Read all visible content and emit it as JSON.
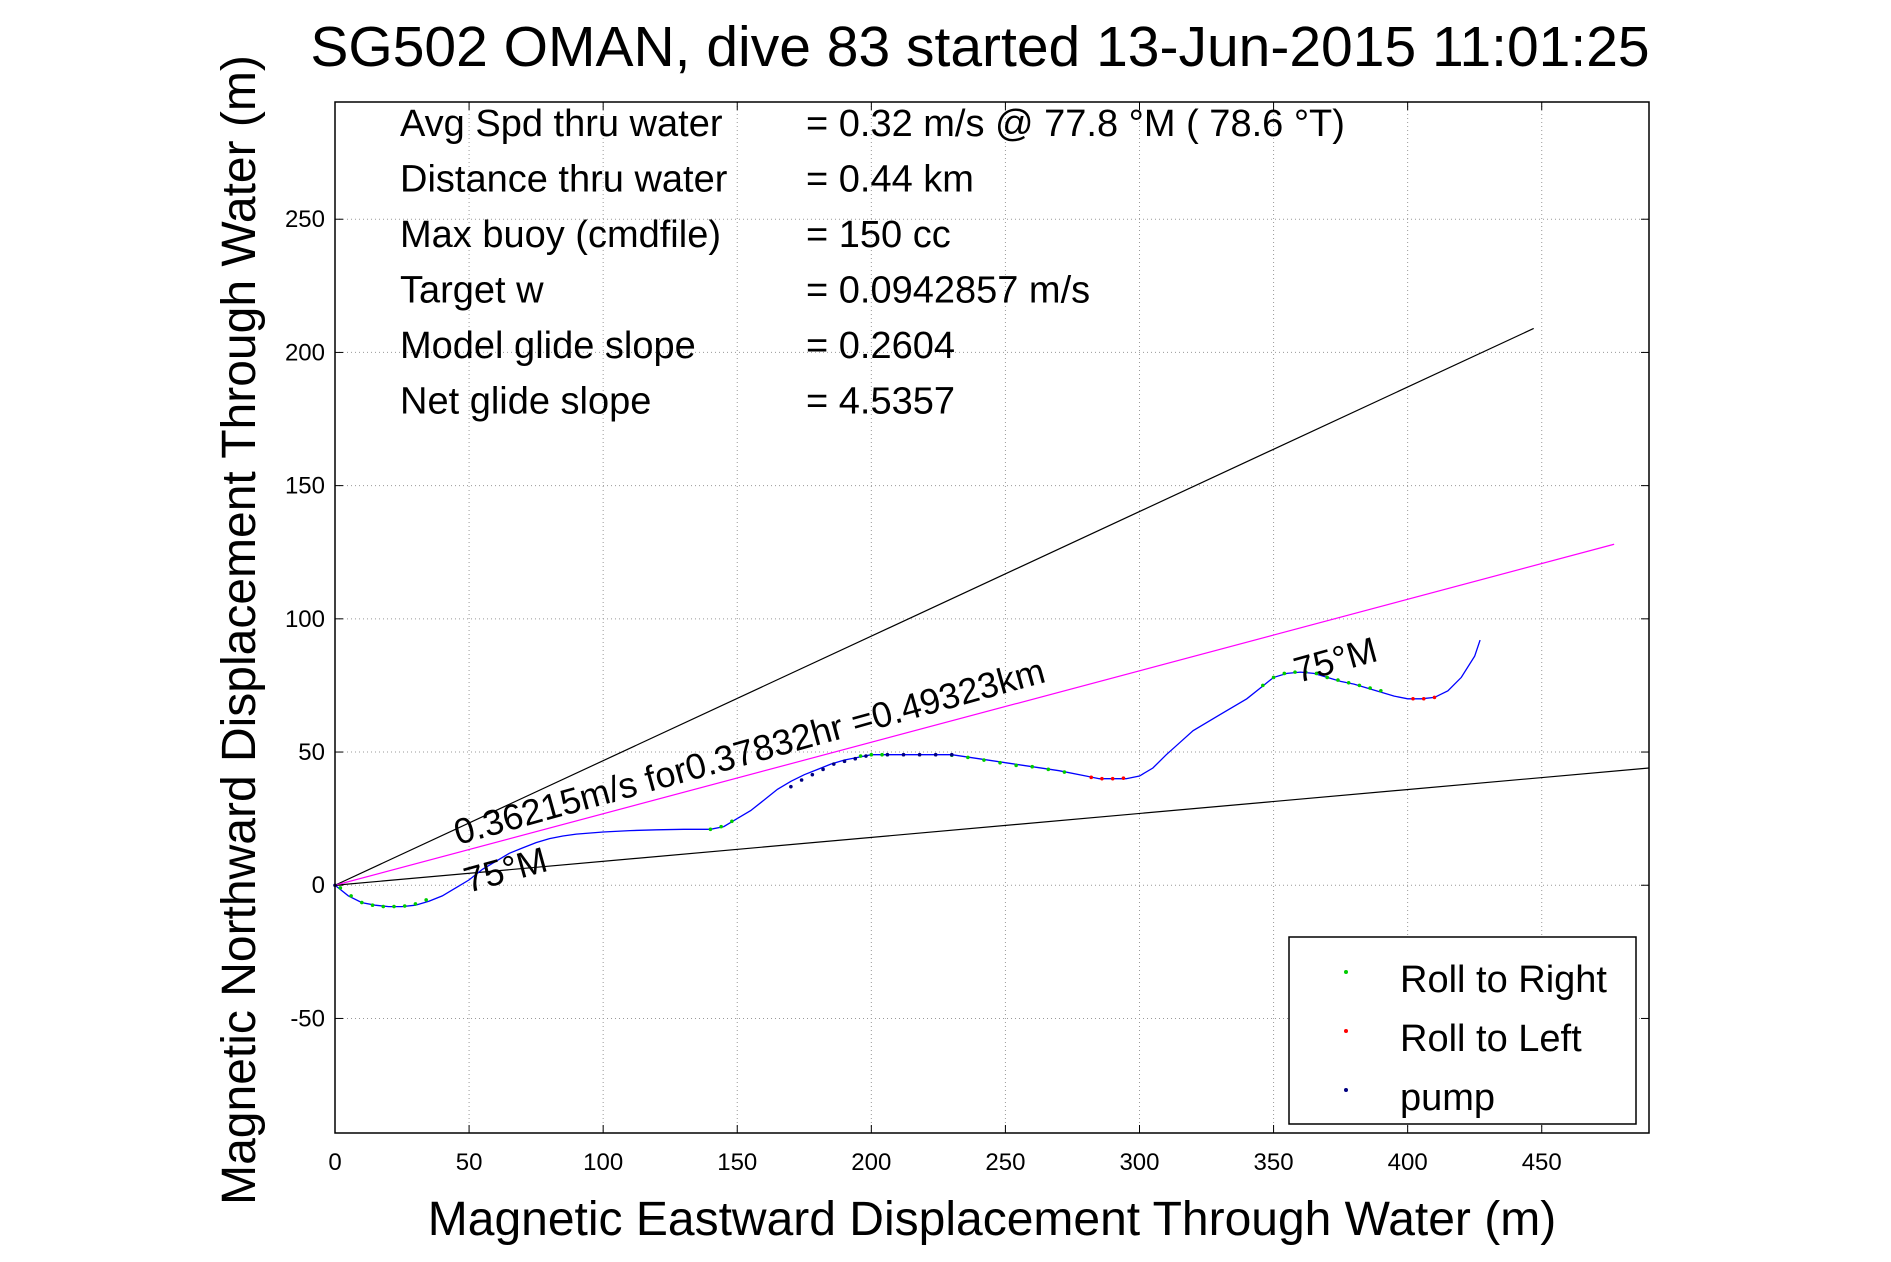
{
  "chart_data": {
    "type": "line",
    "title": "SG502 OMAN, dive 83 started 13-Jun-2015 11:01:25",
    "xlabel": "Magnetic Eastward Displacement Through Water (m)",
    "ylabel": "Magnetic Northward Displacement Through Water (m)",
    "xlim": [
      0,
      490
    ],
    "ylim": [
      -93,
      294
    ],
    "xticks": [
      0,
      50,
      100,
      150,
      200,
      250,
      300,
      350,
      400,
      450
    ],
    "yticks": [
      -50,
      0,
      50,
      100,
      150,
      200,
      250
    ],
    "grid": true,
    "colors": {
      "track": "#0000ff",
      "roll_right": "#00cc00",
      "roll_left": "#ff0000",
      "pump": "#000080",
      "avg_line": "#ff00ff",
      "bound_line": "#000000",
      "grid": "#999999"
    },
    "info": [
      {
        "label": "Avg Spd thru water",
        "value": "=  0.32 m/s @  77.8 °M ( 78.6 °T)"
      },
      {
        "label": "Distance thru water",
        "value": "=  0.44 km"
      },
      {
        "label": "Max buoy (cmdfile)",
        "value": "= 150 cc"
      },
      {
        "label": "Target w",
        "value": "= 0.0942857 m/s"
      },
      {
        "label": "Model glide slope",
        "value": "= 0.2604"
      },
      {
        "label": "Net glide slope",
        "value": "= 4.5357"
      }
    ],
    "annotations": {
      "speed_text": "0.36215m/s for0.37832hr =0.49323km",
      "heading_start": "75°M",
      "heading_end": "75°M"
    },
    "legend": {
      "position": "bottom-right",
      "entries": [
        {
          "name": "Roll to Right",
          "color": "#00cc00"
        },
        {
          "name": "Roll to Left",
          "color": "#ff0000"
        },
        {
          "name": "pump",
          "color": "#000080"
        }
      ]
    },
    "series": [
      {
        "name": "track",
        "x": [
          0,
          5,
          10,
          15,
          20,
          25,
          30,
          35,
          40,
          45,
          50,
          55,
          60,
          65,
          70,
          75,
          80,
          85,
          90,
          100,
          110,
          120,
          130,
          140,
          145,
          150,
          155,
          160,
          165,
          170,
          175,
          180,
          185,
          190,
          195,
          200,
          210,
          220,
          230,
          240,
          250,
          260,
          270,
          280,
          285,
          290,
          295,
          300,
          305,
          310,
          315,
          320,
          330,
          340,
          345,
          350,
          355,
          360,
          365,
          370,
          375,
          380,
          385,
          390,
          395,
          400,
          405,
          410,
          415,
          420,
          425,
          427
        ],
        "y": [
          0,
          -4,
          -6.5,
          -7.5,
          -8,
          -8,
          -7.5,
          -6,
          -4,
          -1,
          2,
          6,
          9,
          12,
          14,
          16,
          17.5,
          18.5,
          19.2,
          20,
          20.5,
          20.8,
          21,
          21,
          22,
          25,
          28,
          32,
          36,
          39,
          41.5,
          43.5,
          45.5,
          47,
          48,
          49,
          49,
          49,
          49,
          47.5,
          46,
          44.5,
          43,
          41,
          40,
          40,
          40,
          41,
          44,
          49,
          53.5,
          58,
          64,
          70,
          74,
          78,
          79.5,
          80,
          79.5,
          78,
          76.5,
          75.5,
          74,
          72.5,
          71,
          70,
          70,
          70.5,
          73,
          78,
          86,
          92
        ]
      },
      {
        "name": "Roll to Right",
        "x": [
          2,
          6,
          10,
          14,
          18,
          22,
          26,
          30,
          34,
          140,
          144,
          148,
          196,
          200,
          204,
          230,
          236,
          242,
          248,
          254,
          260,
          266,
          272,
          346,
          350,
          354,
          358,
          362,
          366,
          370,
          374,
          378,
          382,
          386,
          390
        ],
        "y": [
          -1,
          -4,
          -6.5,
          -7.5,
          -8,
          -8,
          -7.8,
          -7,
          -5.5,
          21,
          22,
          24,
          48.5,
          49,
          49,
          48.8,
          48,
          47,
          46,
          45,
          44.5,
          43.5,
          42.5,
          75,
          78,
          79.5,
          80,
          80,
          79.5,
          78,
          77,
          76,
          75,
          74,
          73
        ]
      },
      {
        "name": "Roll to Left",
        "x": [
          282,
          286,
          290,
          294,
          402,
          406,
          410
        ],
        "y": [
          40.5,
          40,
          40,
          40.2,
          70,
          70,
          70.5
        ]
      },
      {
        "name": "pump",
        "x": [
          0,
          170,
          174,
          178,
          182,
          186,
          190,
          194,
          198,
          206,
          212,
          218,
          224,
          230
        ],
        "y": [
          0,
          37,
          39.5,
          41.5,
          43.5,
          45.5,
          46.5,
          47.5,
          48.5,
          49,
          49,
          49,
          49,
          49
        ]
      }
    ],
    "reference_lines": [
      {
        "name": "upper-bound",
        "x": [
          0,
          447
        ],
        "y": [
          0,
          209
        ]
      },
      {
        "name": "lower-bound",
        "x": [
          0,
          490
        ],
        "y": [
          0,
          44
        ]
      },
      {
        "name": "average-track",
        "x": [
          0,
          477
        ],
        "y": [
          0,
          128
        ]
      }
    ]
  }
}
